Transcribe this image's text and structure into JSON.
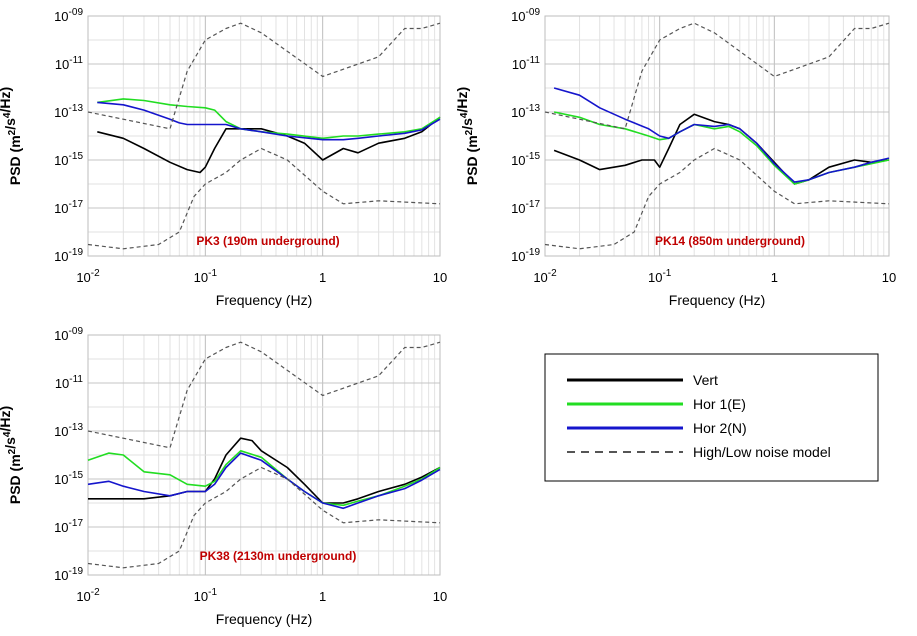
{
  "colors": {
    "vert": "#000000",
    "hor1": "#22DD22",
    "hor2": "#1515CC",
    "noise": "#555555",
    "site": "#C00000"
  },
  "legend": {
    "entries": [
      {
        "key": "vert",
        "label": "Vert"
      },
      {
        "key": "hor1",
        "label": "Hor 1(E)"
      },
      {
        "key": "hor2",
        "label": "Hor 2(N)"
      },
      {
        "key": "noise",
        "label": "High/Low noise model"
      }
    ]
  },
  "chart_data": [
    {
      "type": "line",
      "title": "PK3 (190m underground)",
      "xlabel": "Frequency (Hz)",
      "ylabel": "PSD (m2/s4/Hz)",
      "xscale": "log",
      "yscale": "log",
      "xlim": [
        0.01,
        10
      ],
      "ylim": [
        1e-19,
        1e-09
      ],
      "xticks": [
        "10-2",
        "10-1",
        "1",
        "10"
      ],
      "yticks": [
        "10-19",
        "10-17",
        "10-15",
        "10-13",
        "10-11",
        "10-09"
      ],
      "series": [
        {
          "name": "Vert",
          "key": "vert",
          "x": [
            0.012,
            0.02,
            0.03,
            0.05,
            0.07,
            0.09,
            0.1,
            0.12,
            0.15,
            0.2,
            0.3,
            0.5,
            0.7,
            1,
            1.5,
            2,
            3,
            5,
            7,
            10
          ],
          "y": [
            1.5e-14,
            8e-15,
            3e-15,
            8e-16,
            4e-16,
            3e-16,
            5e-16,
            3e-15,
            2e-14,
            2e-14,
            2e-14,
            1e-14,
            5e-15,
            1e-15,
            3e-15,
            2e-15,
            5e-15,
            8e-15,
            1.5e-14,
            6e-14
          ]
        },
        {
          "name": "Hor 1(E)",
          "key": "hor1",
          "x": [
            0.012,
            0.02,
            0.03,
            0.05,
            0.07,
            0.1,
            0.12,
            0.15,
            0.2,
            0.3,
            0.5,
            1,
            1.5,
            2,
            3,
            5,
            7,
            10
          ],
          "y": [
            2.5e-13,
            3.5e-13,
            3e-13,
            2e-13,
            1.7e-13,
            1.5e-13,
            1.2e-13,
            4e-14,
            2e-14,
            1.5e-14,
            1.2e-14,
            8e-15,
            1e-14,
            1e-14,
            1.2e-14,
            1.5e-14,
            2e-14,
            6e-14
          ]
        },
        {
          "name": "Hor 2(N)",
          "key": "hor2",
          "x": [
            0.012,
            0.02,
            0.03,
            0.05,
            0.06,
            0.07,
            0.1,
            0.15,
            0.2,
            0.3,
            0.5,
            1,
            1.5,
            2,
            3,
            5,
            7,
            10
          ],
          "y": [
            2.5e-13,
            2e-13,
            1.2e-13,
            5e-14,
            3.5e-14,
            3e-14,
            3e-14,
            3e-14,
            2e-14,
            1.5e-14,
            1e-14,
            7e-15,
            7e-15,
            8e-15,
            1e-14,
            1.3e-14,
            1.8e-14,
            5e-14
          ]
        },
        {
          "name": "High noise model",
          "key": "noise",
          "dashed": true,
          "x": [
            0.01,
            0.05,
            0.07,
            0.1,
            0.15,
            0.2,
            0.3,
            1,
            3,
            5,
            7,
            10
          ],
          "y": [
            1e-13,
            2e-14,
            5e-12,
            1e-10,
            3e-10,
            5e-10,
            2e-10,
            3e-12,
            2e-11,
            3e-10,
            3e-10,
            5e-10
          ]
        },
        {
          "name": "Low noise model",
          "key": "noise",
          "dashed": true,
          "x": [
            0.01,
            0.02,
            0.04,
            0.06,
            0.08,
            0.1,
            0.15,
            0.2,
            0.3,
            0.5,
            1,
            1.5,
            3,
            10
          ],
          "y": [
            3e-19,
            2e-19,
            3e-19,
            1e-18,
            3e-17,
            1e-16,
            3e-16,
            1e-15,
            3e-15,
            1e-15,
            5e-17,
            1.5e-17,
            2e-17,
            1.5e-17
          ]
        }
      ]
    },
    {
      "type": "line",
      "title": "PK14 (850m underground)",
      "xlabel": "Frequency (Hz)",
      "ylabel": "PSD (m2/s4/Hz)",
      "xscale": "log",
      "yscale": "log",
      "xlim": [
        0.01,
        10
      ],
      "ylim": [
        1e-19,
        1e-09
      ],
      "xticks": [
        "10-2",
        "10-1",
        "1",
        "10"
      ],
      "yticks": [
        "10-19",
        "10-17",
        "10-15",
        "10-13",
        "10-11",
        "10-09"
      ],
      "series": [
        {
          "name": "Vert",
          "key": "vert",
          "x": [
            0.012,
            0.02,
            0.03,
            0.05,
            0.07,
            0.09,
            0.1,
            0.12,
            0.15,
            0.2,
            0.3,
            0.4,
            0.5,
            0.7,
            1,
            1.5,
            2,
            3,
            5,
            7,
            10
          ],
          "y": [
            2.5e-15,
            1e-15,
            4e-16,
            6e-16,
            1e-15,
            1e-15,
            5e-16,
            3e-15,
            3e-14,
            8e-14,
            4e-14,
            3e-14,
            2e-14,
            5e-15,
            8e-16,
            1e-16,
            1.5e-16,
            5e-16,
            1e-15,
            8e-16,
            1e-15
          ]
        },
        {
          "name": "Hor 1(E)",
          "key": "hor1",
          "x": [
            0.012,
            0.02,
            0.03,
            0.05,
            0.08,
            0.1,
            0.12,
            0.15,
            0.2,
            0.3,
            0.4,
            0.5,
            0.7,
            1,
            1.5,
            2,
            3,
            5,
            7,
            10
          ],
          "y": [
            1e-13,
            6e-14,
            3e-14,
            2e-14,
            1e-14,
            7e-15,
            8e-15,
            1.5e-14,
            3e-14,
            2e-14,
            2.5e-14,
            1.5e-14,
            4e-15,
            6e-16,
            1e-16,
            1.5e-16,
            3e-16,
            5e-16,
            7e-16,
            1e-15
          ]
        },
        {
          "name": "Hor 2(N)",
          "key": "hor2",
          "x": [
            0.012,
            0.02,
            0.03,
            0.05,
            0.08,
            0.1,
            0.12,
            0.15,
            0.2,
            0.3,
            0.4,
            0.5,
            0.7,
            1,
            1.5,
            2,
            3,
            5,
            7,
            10
          ],
          "y": [
            1e-12,
            5e-13,
            1.5e-13,
            5e-14,
            2e-14,
            1e-14,
            8e-15,
            1.5e-14,
            3e-14,
            2.5e-14,
            3e-14,
            2e-14,
            5e-15,
            7e-16,
            1.2e-16,
            1.5e-16,
            3e-16,
            5e-16,
            8e-16,
            1.2e-15
          ]
        },
        {
          "name": "High noise model",
          "key": "noise",
          "dashed": true,
          "x": [
            0.01,
            0.05,
            0.07,
            0.1,
            0.15,
            0.2,
            0.3,
            1,
            3,
            5,
            7,
            10
          ],
          "y": [
            1e-13,
            2e-14,
            5e-12,
            1e-10,
            3e-10,
            5e-10,
            2e-10,
            3e-12,
            2e-11,
            3e-10,
            3e-10,
            5e-10
          ]
        },
        {
          "name": "Low noise model",
          "key": "noise",
          "dashed": true,
          "x": [
            0.01,
            0.02,
            0.04,
            0.06,
            0.08,
            0.1,
            0.15,
            0.2,
            0.3,
            0.5,
            1,
            1.5,
            3,
            10
          ],
          "y": [
            3e-19,
            2e-19,
            3e-19,
            1e-18,
            3e-17,
            1e-16,
            3e-16,
            1e-15,
            3e-15,
            1e-15,
            5e-17,
            1.5e-17,
            2e-17,
            1.5e-17
          ]
        }
      ]
    },
    {
      "type": "line",
      "title": "PK38 (2130m underground)",
      "xlabel": "Frequency (Hz)",
      "ylabel": "PSD (m2/s4/Hz)",
      "xscale": "log",
      "yscale": "log",
      "xlim": [
        0.01,
        10
      ],
      "ylim": [
        1e-19,
        1e-09
      ],
      "xticks": [
        "10-2",
        "10-1",
        "1",
        "10"
      ],
      "yticks": [
        "10-19",
        "10-17",
        "10-15",
        "10-13",
        "10-11",
        "10-09"
      ],
      "series": [
        {
          "name": "Vert",
          "key": "vert",
          "x": [
            0.01,
            0.02,
            0.03,
            0.05,
            0.07,
            0.1,
            0.12,
            0.15,
            0.2,
            0.25,
            0.3,
            0.5,
            0.7,
            1,
            1.5,
            2,
            3,
            5,
            7,
            10
          ],
          "y": [
            1.5e-16,
            1.5e-16,
            1.5e-16,
            2e-16,
            3e-16,
            3e-16,
            1e-15,
            1e-14,
            5e-14,
            4e-14,
            1.5e-14,
            3e-15,
            6e-16,
            1e-16,
            1e-16,
            1.5e-16,
            3e-16,
            6e-16,
            1.2e-15,
            3e-15
          ]
        },
        {
          "name": "Hor 1(E)",
          "key": "hor1",
          "x": [
            0.01,
            0.015,
            0.02,
            0.03,
            0.05,
            0.07,
            0.1,
            0.12,
            0.15,
            0.2,
            0.3,
            0.5,
            0.7,
            1,
            1.5,
            2,
            3,
            5,
            7,
            10
          ],
          "y": [
            6e-15,
            1.2e-14,
            1e-14,
            2e-15,
            1.5e-15,
            6e-16,
            5e-16,
            8e-16,
            4e-15,
            1.5e-14,
            8e-15,
            1e-15,
            3e-16,
            1e-16,
            8e-17,
            1.2e-16,
            2e-16,
            5e-16,
            1e-15,
            3e-15
          ]
        },
        {
          "name": "Hor 2(N)",
          "key": "hor2",
          "x": [
            0.01,
            0.015,
            0.02,
            0.03,
            0.05,
            0.07,
            0.1,
            0.12,
            0.15,
            0.2,
            0.3,
            0.5,
            0.7,
            1,
            1.5,
            2,
            3,
            5,
            7,
            10
          ],
          "y": [
            6e-16,
            8e-16,
            5e-16,
            3e-16,
            2e-16,
            3e-16,
            3e-16,
            6e-16,
            3e-15,
            1.2e-14,
            6e-15,
            1e-15,
            3e-16,
            1e-16,
            6e-17,
            1e-16,
            2e-16,
            4e-16,
            9e-16,
            2.5e-15
          ]
        },
        {
          "name": "High noise model",
          "key": "noise",
          "dashed": true,
          "x": [
            0.01,
            0.05,
            0.07,
            0.1,
            0.15,
            0.2,
            0.3,
            1,
            3,
            5,
            7,
            10
          ],
          "y": [
            1e-13,
            2e-14,
            5e-12,
            1e-10,
            3e-10,
            5e-10,
            2e-10,
            3e-12,
            2e-11,
            3e-10,
            3e-10,
            5e-10
          ]
        },
        {
          "name": "Low noise model",
          "key": "noise",
          "dashed": true,
          "x": [
            0.01,
            0.02,
            0.04,
            0.06,
            0.08,
            0.1,
            0.15,
            0.2,
            0.3,
            0.5,
            1,
            1.5,
            3,
            10
          ],
          "y": [
            3e-19,
            2e-19,
            3e-19,
            1e-18,
            3e-17,
            1e-16,
            3e-16,
            1e-15,
            3e-15,
            1e-15,
            5e-17,
            1.5e-17,
            2e-17,
            1.5e-17
          ]
        }
      ]
    }
  ]
}
